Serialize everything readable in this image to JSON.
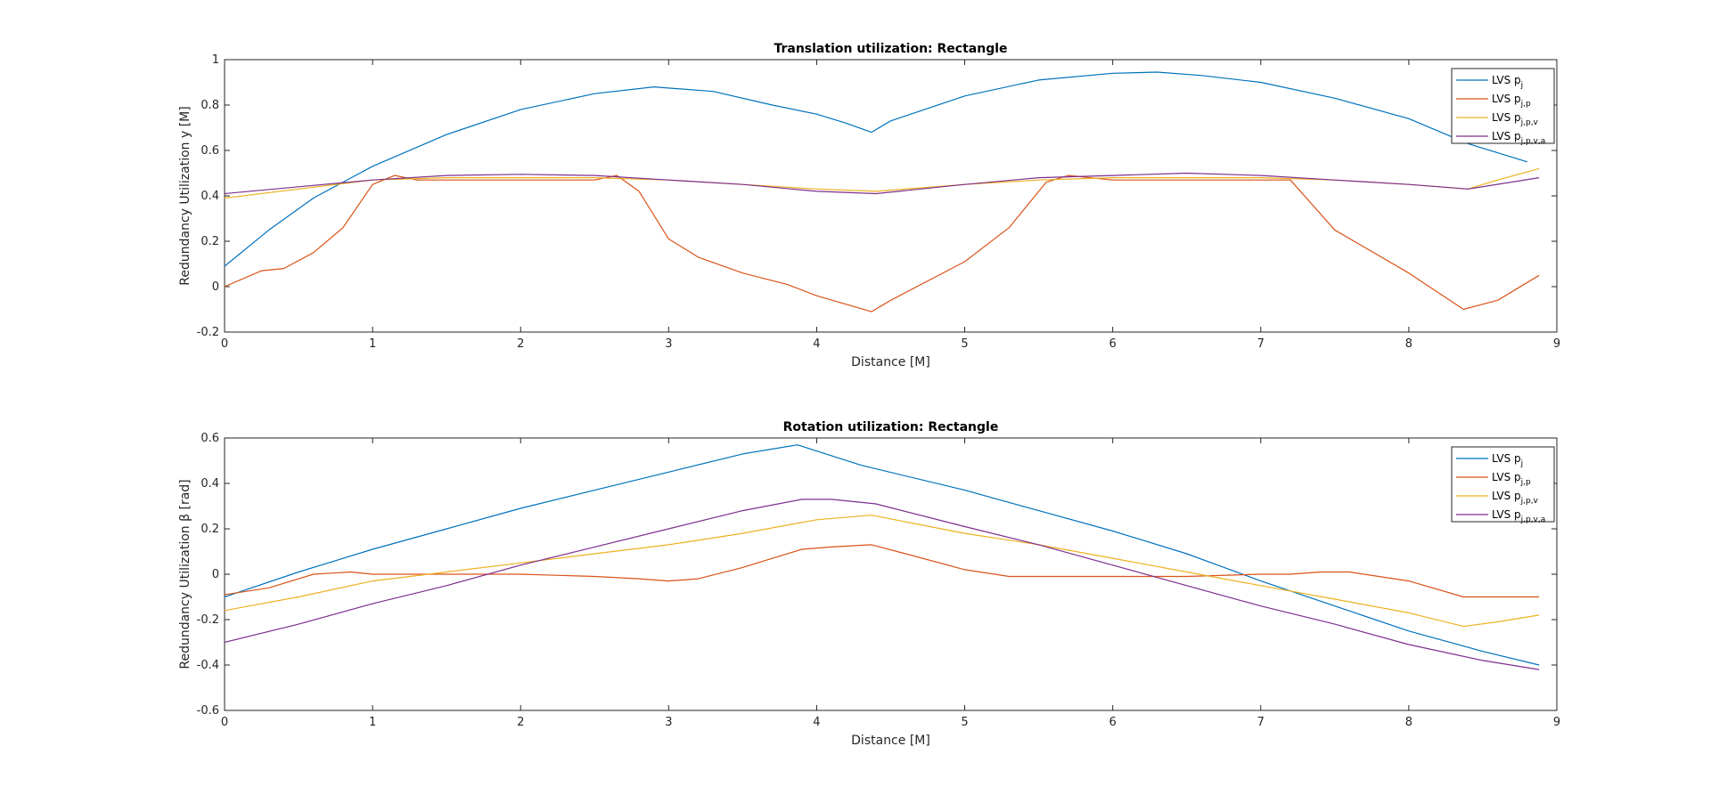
{
  "chart_data": [
    {
      "type": "line",
      "title": "Translation utilization: Rectangle",
      "xlabel": "Distance [M]",
      "ylabel": "Redundancy Utilization y [M]",
      "xlim": [
        0,
        9
      ],
      "ylim": [
        -0.2,
        1
      ],
      "xticks": [
        "0",
        "1",
        "2",
        "3",
        "4",
        "5",
        "6",
        "7",
        "8",
        "9"
      ],
      "yticks": [
        "-0.2",
        "0",
        "0.2",
        "0.4",
        "0.6",
        "0.8",
        "1"
      ],
      "grid": false,
      "legend_placement": "top-right",
      "series": [
        {
          "name": "LVS p",
          "sub": "j",
          "color": "#0072BD",
          "x": [
            0,
            0.3,
            0.6,
            1.0,
            1.5,
            2.0,
            2.5,
            2.9,
            3.3,
            3.7,
            4.0,
            4.2,
            4.37,
            4.5,
            5.0,
            5.5,
            6.0,
            6.3,
            6.6,
            7.0,
            7.5,
            8.0,
            8.4,
            8.8
          ],
          "y": [
            0.09,
            0.25,
            0.39,
            0.53,
            0.67,
            0.78,
            0.85,
            0.88,
            0.86,
            0.8,
            0.76,
            0.72,
            0.68,
            0.73,
            0.84,
            0.91,
            0.94,
            0.945,
            0.93,
            0.9,
            0.83,
            0.74,
            0.63,
            0.55
          ]
        },
        {
          "name": "LVS p",
          "sub": "j,p",
          "color": "#D95319",
          "x": [
            0,
            0.25,
            0.4,
            0.6,
            0.8,
            1.0,
            1.15,
            1.3,
            1.5,
            2.0,
            2.5,
            2.65,
            2.8,
            3.0,
            3.2,
            3.5,
            3.8,
            4.0,
            4.37,
            4.5,
            5.0,
            5.3,
            5.55,
            5.7,
            6.0,
            6.5,
            7.0,
            7.2,
            7.5,
            8.0,
            8.37,
            8.6,
            8.88
          ],
          "y": [
            0.0,
            0.07,
            0.08,
            0.15,
            0.26,
            0.45,
            0.49,
            0.47,
            0.47,
            0.47,
            0.47,
            0.49,
            0.42,
            0.21,
            0.13,
            0.06,
            0.01,
            -0.04,
            -0.11,
            -0.06,
            0.11,
            0.26,
            0.46,
            0.49,
            0.47,
            0.47,
            0.47,
            0.47,
            0.25,
            0.06,
            -0.1,
            -0.06,
            0.05
          ]
        },
        {
          "name": "LVS p",
          "sub": "j,p,v",
          "color": "#EDB120",
          "x": [
            0,
            0.5,
            1.0,
            1.5,
            2.0,
            2.5,
            3.0,
            3.5,
            4.0,
            4.4,
            5.0,
            5.5,
            6.0,
            6.5,
            7.0,
            7.5,
            8.0,
            8.4,
            8.6,
            8.88
          ],
          "y": [
            0.39,
            0.43,
            0.47,
            0.48,
            0.48,
            0.48,
            0.47,
            0.45,
            0.43,
            0.42,
            0.45,
            0.47,
            0.48,
            0.48,
            0.48,
            0.47,
            0.45,
            0.43,
            0.47,
            0.52
          ]
        },
        {
          "name": "LVS p",
          "sub": "j,p,v,a",
          "color": "#7E2F8E",
          "x": [
            0,
            0.5,
            1.0,
            1.5,
            2.0,
            2.5,
            3.0,
            3.5,
            4.0,
            4.4,
            5.0,
            5.5,
            6.0,
            6.5,
            7.0,
            7.5,
            8.0,
            8.4,
            8.88
          ],
          "y": [
            0.41,
            0.44,
            0.47,
            0.49,
            0.495,
            0.49,
            0.47,
            0.45,
            0.42,
            0.41,
            0.45,
            0.48,
            0.49,
            0.5,
            0.49,
            0.47,
            0.45,
            0.43,
            0.48
          ]
        }
      ]
    },
    {
      "type": "line",
      "title": "Rotation utilization: Rectangle",
      "xlabel": "Distance [M]",
      "ylabel": "Redundancy Utilization β [rad]",
      "xlim": [
        0,
        9
      ],
      "ylim": [
        -0.6,
        0.6
      ],
      "xticks": [
        "0",
        "1",
        "2",
        "3",
        "4",
        "5",
        "6",
        "7",
        "8",
        "9"
      ],
      "yticks": [
        "-0.6",
        "-0.4",
        "-0.2",
        "0",
        "0.2",
        "0.4",
        "0.6"
      ],
      "grid": false,
      "legend_placement": "top-right",
      "series": [
        {
          "name": "LVS p",
          "sub": "j",
          "color": "#0072BD",
          "x": [
            0,
            0.5,
            1.0,
            1.5,
            2.0,
            2.5,
            3.0,
            3.5,
            3.87,
            4.3,
            5.0,
            5.5,
            6.0,
            6.5,
            7.0,
            7.5,
            8.0,
            8.5,
            8.88
          ],
          "y": [
            -0.1,
            0.01,
            0.11,
            0.2,
            0.29,
            0.37,
            0.45,
            0.53,
            0.57,
            0.48,
            0.37,
            0.28,
            0.19,
            0.09,
            -0.03,
            -0.14,
            -0.25,
            -0.34,
            -0.4
          ]
        },
        {
          "name": "LVS p",
          "sub": "j,p",
          "color": "#D95319",
          "x": [
            0,
            0.3,
            0.6,
            0.85,
            1.0,
            1.5,
            2.0,
            2.5,
            2.8,
            3.0,
            3.2,
            3.5,
            3.9,
            4.1,
            4.37,
            4.6,
            5.0,
            5.3,
            5.5,
            6.0,
            6.5,
            7.0,
            7.2,
            7.4,
            7.6,
            8.0,
            8.37,
            8.88
          ],
          "y": [
            -0.09,
            -0.06,
            0.0,
            0.01,
            0.0,
            0.0,
            0.0,
            -0.01,
            -0.02,
            -0.03,
            -0.02,
            0.03,
            0.11,
            0.12,
            0.13,
            0.09,
            0.02,
            -0.01,
            -0.01,
            -0.01,
            -0.01,
            0.0,
            0.0,
            0.01,
            0.01,
            -0.03,
            -0.1,
            -0.1
          ]
        },
        {
          "name": "LVS p",
          "sub": "j,p,v",
          "color": "#EDB120",
          "x": [
            0,
            0.5,
            1.0,
            1.5,
            2.0,
            2.5,
            3.0,
            3.5,
            4.0,
            4.37,
            5.0,
            5.5,
            6.0,
            6.5,
            7.0,
            7.5,
            8.0,
            8.37,
            8.6,
            8.88
          ],
          "y": [
            -0.16,
            -0.1,
            -0.03,
            0.01,
            0.05,
            0.09,
            0.13,
            0.18,
            0.24,
            0.26,
            0.18,
            0.13,
            0.07,
            0.01,
            -0.05,
            -0.11,
            -0.17,
            -0.23,
            -0.21,
            -0.18
          ]
        },
        {
          "name": "LVS p",
          "sub": "j,p,v,a",
          "color": "#7E2F8E",
          "x": [
            0,
            0.5,
            1.0,
            1.5,
            2.0,
            2.5,
            3.0,
            3.5,
            3.9,
            4.1,
            4.4,
            5.0,
            5.5,
            6.0,
            6.5,
            7.0,
            7.5,
            8.0,
            8.5,
            8.88
          ],
          "y": [
            -0.3,
            -0.22,
            -0.13,
            -0.05,
            0.04,
            0.12,
            0.2,
            0.28,
            0.33,
            0.33,
            0.31,
            0.21,
            0.13,
            0.04,
            -0.05,
            -0.14,
            -0.22,
            -0.31,
            -0.38,
            -0.42
          ]
        }
      ]
    }
  ]
}
